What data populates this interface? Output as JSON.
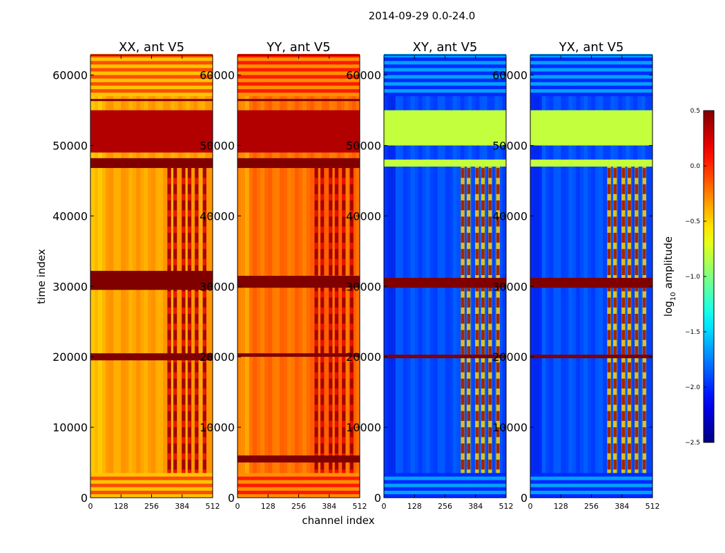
{
  "figure": {
    "suptitle": "2014-09-29 0.0-24.0",
    "xlabel": "channel index",
    "ylabel": "time index"
  },
  "chart_data": [
    {
      "type": "heatmap",
      "title": "XX, ant V5",
      "pol": "XX",
      "xlim": [
        0,
        512
      ],
      "ylim": [
        0,
        62800
      ],
      "xticks": [
        0,
        128,
        256,
        384,
        512
      ],
      "yticks": [
        0,
        10000,
        20000,
        30000,
        40000,
        50000,
        60000
      ],
      "base_level": -0.35,
      "saturated_rows": [
        [
          29500,
          32200
        ],
        [
          19500,
          20500
        ],
        [
          46800,
          48200
        ],
        [
          56300,
          56600
        ]
      ],
      "band_rows": [
        [
          49000,
          55000
        ]
      ],
      "burst_channels": [
        330,
        355,
        390,
        415,
        445,
        478
      ]
    },
    {
      "type": "heatmap",
      "title": "YY, ant V5",
      "pol": "YY",
      "xlim": [
        0,
        512
      ],
      "ylim": [
        0,
        62800
      ],
      "xticks": [
        0,
        128,
        256,
        384,
        512
      ],
      "yticks": [
        0,
        10000,
        20000,
        30000,
        40000,
        50000,
        60000
      ],
      "base_level": -0.2,
      "saturated_rows": [
        [
          29800,
          31500
        ],
        [
          20000,
          20500
        ],
        [
          5000,
          6000
        ],
        [
          46800,
          48200
        ],
        [
          56300,
          56600
        ]
      ],
      "band_rows": [
        [
          49000,
          55000
        ]
      ],
      "burst_channels": [
        330,
        355,
        390,
        415,
        445,
        478
      ]
    },
    {
      "type": "heatmap",
      "title": "XY, ant V5",
      "pol": "XY",
      "xlim": [
        0,
        512
      ],
      "ylim": [
        0,
        62800
      ],
      "xticks": [
        0,
        128,
        256,
        384,
        512
      ],
      "yticks": [
        0,
        10000,
        20000,
        30000,
        40000,
        50000,
        60000
      ],
      "base_level": -1.9,
      "saturated_rows": [
        [
          29800,
          31200
        ],
        [
          19800,
          20300
        ]
      ],
      "band_rows": [
        [
          47000,
          48000
        ],
        [
          50000,
          55000
        ]
      ],
      "burst_channels": [
        330,
        355,
        390,
        415,
        445,
        478
      ]
    },
    {
      "type": "heatmap",
      "title": "YX, ant V5",
      "pol": "YX",
      "xlim": [
        0,
        512
      ],
      "ylim": [
        0,
        62800
      ],
      "xticks": [
        0,
        128,
        256,
        384,
        512
      ],
      "yticks": [
        0,
        10000,
        20000,
        30000,
        40000,
        50000,
        60000
      ],
      "base_level": -1.9,
      "saturated_rows": [
        [
          29800,
          31200
        ],
        [
          19800,
          20300
        ]
      ],
      "band_rows": [
        [
          47000,
          48000
        ],
        [
          50000,
          55000
        ]
      ],
      "burst_channels": [
        330,
        355,
        390,
        415,
        445,
        478
      ]
    }
  ],
  "colorbar": {
    "label": "log10 amplitude",
    "label_main": "log",
    "label_sub": "10",
    "label_rest": " amplitude",
    "vmin": -2.5,
    "vmax": 0.5,
    "colormap": "jet",
    "ticks": [
      {
        "value": 0.5,
        "label": "0.5"
      },
      {
        "value": 0.0,
        "label": "0.0"
      },
      {
        "value": -0.5,
        "label": "−0.5"
      },
      {
        "value": -1.0,
        "label": "−1.0"
      },
      {
        "value": -1.5,
        "label": "−1.5"
      },
      {
        "value": -2.0,
        "label": "−2.0"
      },
      {
        "value": -2.5,
        "label": "−2.5"
      }
    ]
  }
}
